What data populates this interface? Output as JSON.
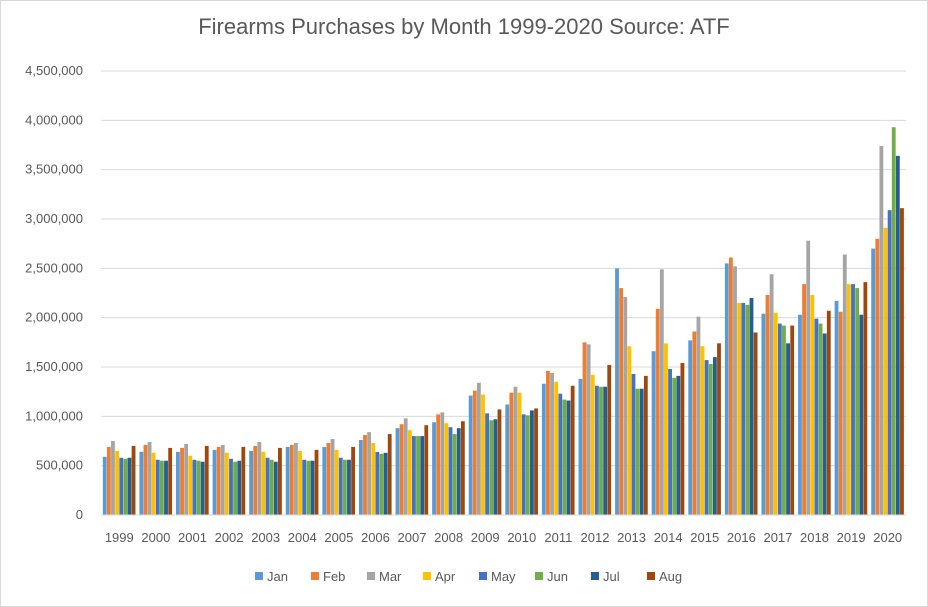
{
  "chart_data": {
    "type": "bar",
    "title": "Firearms Purchases by Month 1999-2020 Source: ATF",
    "xlabel": "",
    "ylabel": "",
    "ylim": [
      0,
      4500000
    ],
    "yticks": [
      0,
      500000,
      1000000,
      1500000,
      2000000,
      2500000,
      3000000,
      3500000,
      4000000,
      4500000
    ],
    "ytick_labels": [
      "0",
      "500,000",
      "1,000,000",
      "1,500,000",
      "2,000,000",
      "2,500,000",
      "3,000,000",
      "3,500,000",
      "4,000,000",
      "4,500,000"
    ],
    "grid": true,
    "legend_position": "bottom",
    "categories": [
      "1999",
      "2000",
      "2001",
      "2002",
      "2003",
      "2004",
      "2005",
      "2006",
      "2007",
      "2008",
      "2009",
      "2010",
      "2011",
      "2012",
      "2013",
      "2014",
      "2015",
      "2016",
      "2017",
      "2018",
      "2019",
      "2020"
    ],
    "series": [
      {
        "name": "Jan",
        "color": "#5b9bd5",
        "values": [
          590000,
          640000,
          640000,
          660000,
          650000,
          690000,
          690000,
          760000,
          880000,
          940000,
          1210000,
          1120000,
          1330000,
          1380000,
          2500000,
          1660000,
          1770000,
          2550000,
          2040000,
          2030000,
          2170000,
          2700000
        ]
      },
      {
        "name": "Feb",
        "color": "#ed7d31",
        "values": [
          690000,
          710000,
          680000,
          690000,
          700000,
          710000,
          730000,
          810000,
          920000,
          1020000,
          1260000,
          1240000,
          1460000,
          1750000,
          2300000,
          2090000,
          1860000,
          2610000,
          2230000,
          2340000,
          2060000,
          2800000
        ]
      },
      {
        "name": "Mar",
        "color": "#a5a5a5",
        "values": [
          750000,
          740000,
          720000,
          710000,
          740000,
          730000,
          770000,
          840000,
          980000,
          1040000,
          1340000,
          1300000,
          1440000,
          1730000,
          2210000,
          2490000,
          2010000,
          2520000,
          2440000,
          2780000,
          2640000,
          3740000
        ]
      },
      {
        "name": "Apr",
        "color": "#ffc000",
        "values": [
          650000,
          630000,
          600000,
          630000,
          640000,
          650000,
          660000,
          730000,
          860000,
          930000,
          1220000,
          1240000,
          1350000,
          1420000,
          1710000,
          1740000,
          1710000,
          2150000,
          2050000,
          2230000,
          2340000,
          2910000
        ]
      },
      {
        "name": "May",
        "color": "#4472c4",
        "values": [
          580000,
          560000,
          560000,
          570000,
          580000,
          560000,
          580000,
          640000,
          800000,
          890000,
          1030000,
          1020000,
          1230000,
          1310000,
          1430000,
          1480000,
          1570000,
          2150000,
          1940000,
          1990000,
          2340000,
          3090000
        ]
      },
      {
        "name": "Jun",
        "color": "#70ad47",
        "values": [
          570000,
          550000,
          550000,
          540000,
          560000,
          550000,
          560000,
          620000,
          800000,
          820000,
          960000,
          1010000,
          1170000,
          1300000,
          1280000,
          1390000,
          1530000,
          2130000,
          1920000,
          1940000,
          2300000,
          3930000
        ]
      },
      {
        "name": "Jul",
        "color": "#255e91",
        "values": [
          580000,
          550000,
          540000,
          550000,
          540000,
          550000,
          560000,
          630000,
          800000,
          880000,
          970000,
          1060000,
          1160000,
          1300000,
          1280000,
          1410000,
          1600000,
          2200000,
          1740000,
          1840000,
          2030000,
          3640000
        ]
      },
      {
        "name": "Aug",
        "color": "#9e480e",
        "values": [
          700000,
          680000,
          700000,
          690000,
          680000,
          660000,
          690000,
          820000,
          910000,
          950000,
          1070000,
          1080000,
          1310000,
          1520000,
          1410000,
          1540000,
          1740000,
          1850000,
          1920000,
          2070000,
          2360000,
          3110000
        ]
      }
    ]
  }
}
